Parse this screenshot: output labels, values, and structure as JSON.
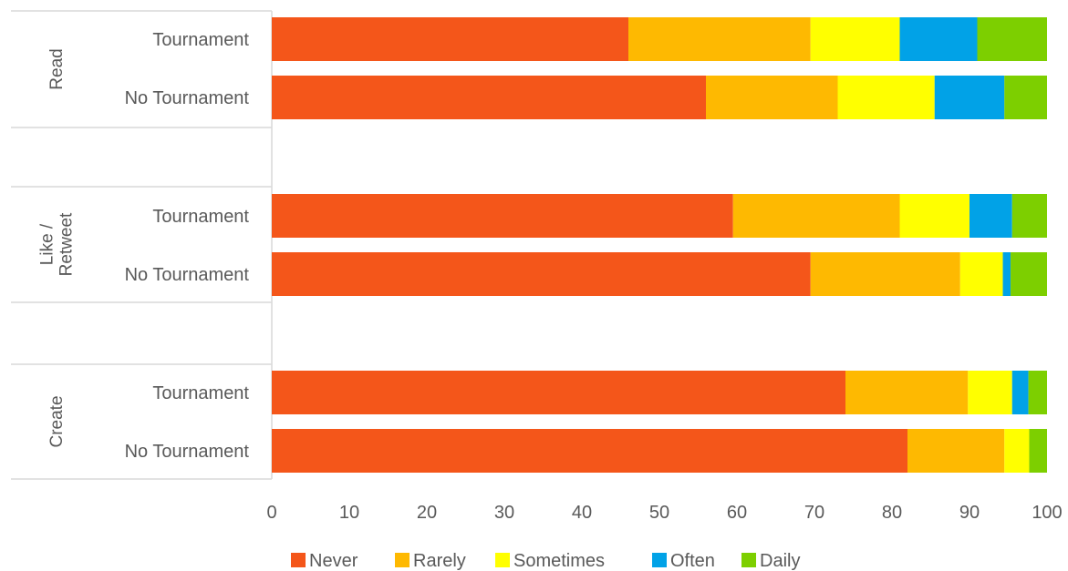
{
  "chart_data": {
    "type": "bar",
    "orientation": "horizontal",
    "stacked": true,
    "title": "",
    "xlabel": "",
    "ylabel": "",
    "xlim": [
      0,
      100
    ],
    "xticks": [
      "0",
      "10",
      "20",
      "30",
      "40",
      "50",
      "60",
      "70",
      "80",
      "90",
      "100"
    ],
    "grid": false,
    "legend_position": "bottom",
    "groups": [
      {
        "label": "Read",
        "categories": [
          "Tournament",
          "No Tournament"
        ]
      },
      {
        "label": "Like / Retweet",
        "label_lines": [
          "Like /",
          "Retweet"
        ],
        "categories": [
          "Tournament",
          "No Tournament"
        ]
      },
      {
        "label": "Create",
        "categories": [
          "Tournament",
          "No Tournament"
        ]
      }
    ],
    "categories": [
      "Read - Tournament",
      "Read - No Tournament",
      "Like / Retweet - Tournament",
      "Like / Retweet - No Tournament",
      "Create - Tournament",
      "Create - No Tournament"
    ],
    "series": [
      {
        "name": "Never",
        "color": "#f4561a",
        "values": [
          46,
          56,
          59.5,
          69.5,
          74,
          82
        ]
      },
      {
        "name": "Rarely",
        "color": "#feb901",
        "values": [
          23.5,
          17,
          21.5,
          19.3,
          15.8,
          12.5
        ]
      },
      {
        "name": "Sometimes",
        "color": "#ffff00",
        "values": [
          11.5,
          12.5,
          9,
          5.5,
          5.7,
          3.2
        ]
      },
      {
        "name": "Often",
        "color": "#01a2e7",
        "values": [
          10,
          9,
          5.5,
          1,
          2.1,
          0
        ]
      },
      {
        "name": "Daily",
        "color": "#7dcf00",
        "values": [
          9,
          5.5,
          4.5,
          4.7,
          2.4,
          2.3
        ]
      }
    ]
  }
}
